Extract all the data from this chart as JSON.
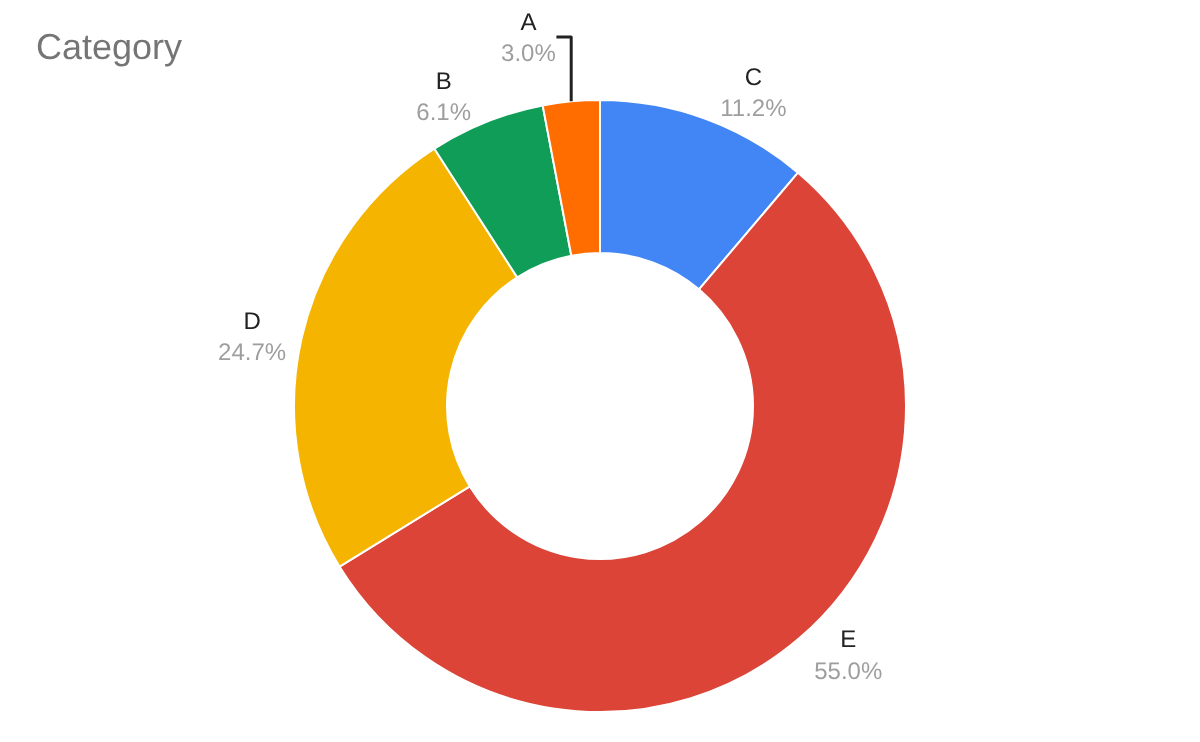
{
  "chart_data": {
    "type": "donut",
    "title": "Category",
    "categories": [
      "C",
      "E",
      "D",
      "B",
      "A"
    ],
    "values": [
      11.2,
      55.0,
      24.7,
      6.1,
      3.0
    ],
    "value_labels": [
      "11.2%",
      "55.0%",
      "24.7%",
      "6.1%",
      "3.0%"
    ],
    "colors": [
      "#4285f4",
      "#db4437",
      "#f4b400",
      "#0f9d58",
      "#ff6d00"
    ],
    "legend": false
  }
}
